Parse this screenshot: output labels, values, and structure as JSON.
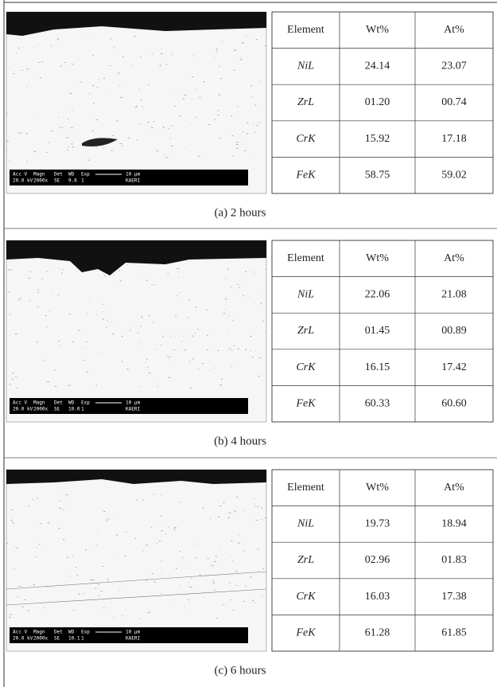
{
  "panels": [
    {
      "caption": "(a) 2 hours",
      "image_bar": {
        "labels": [
          "Acc V",
          "Magn",
          "Det",
          "WD",
          "Exp",
          "10 µm"
        ],
        "values": [
          "20.0 kV",
          "2000x",
          "SE",
          "9.6",
          "1",
          "KAERI"
        ]
      },
      "table": {
        "header": [
          "Element",
          "Wt%",
          "At%"
        ],
        "rows": [
          [
            "NiL",
            "24.14",
            "23.07"
          ],
          [
            "ZrL",
            "01.20",
            "00.74"
          ],
          [
            "CrK",
            "15.92",
            "17.18"
          ],
          [
            "FeK",
            "58.75",
            "59.02"
          ]
        ]
      }
    },
    {
      "caption": "(b) 4 hours",
      "image_bar": {
        "labels": [
          "Acc V",
          "Magn",
          "Det",
          "WD",
          "Exp",
          "10 µm"
        ],
        "values": [
          "20.0 kV",
          "2000x",
          "SE",
          "10.0",
          "1",
          "KAERI"
        ]
      },
      "table": {
        "header": [
          "Element",
          "Wt%",
          "At%"
        ],
        "rows": [
          [
            "NiL",
            "22.06",
            "21.08"
          ],
          [
            "ZrL",
            "01.45",
            "00.89"
          ],
          [
            "CrK",
            "16.15",
            "17.42"
          ],
          [
            "FeK",
            "60.33",
            "60.60"
          ]
        ]
      }
    },
    {
      "caption": "(c) 6 hours",
      "image_bar": {
        "labels": [
          "Acc V",
          "Magn",
          "Det",
          "WD",
          "Exp",
          "10 µm"
        ],
        "values": [
          "20.0 kV",
          "2000x",
          "SE",
          "10.1",
          "1",
          "KAERI"
        ]
      },
      "table": {
        "header": [
          "Element",
          "Wt%",
          "At%"
        ],
        "rows": [
          [
            "NiL",
            "19.73",
            "18.94"
          ],
          [
            "ZrL",
            "02.96",
            "01.83"
          ],
          [
            "CrK",
            "16.03",
            "17.38"
          ],
          [
            "FeK",
            "61.28",
            "61.85"
          ]
        ]
      }
    }
  ]
}
